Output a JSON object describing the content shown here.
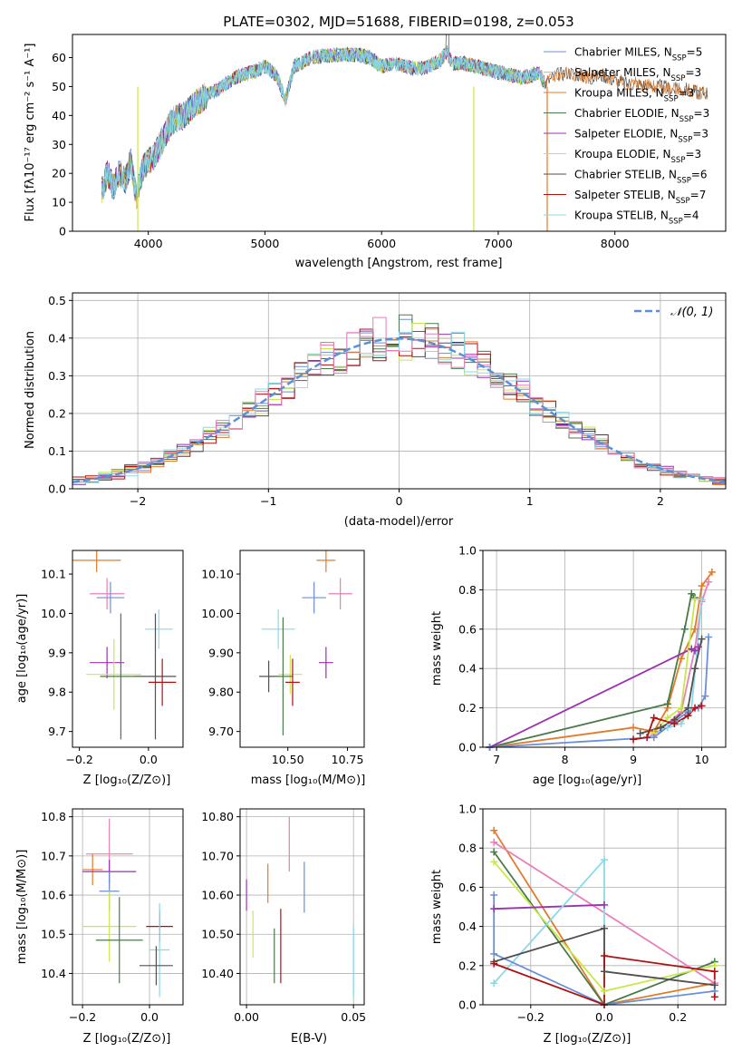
{
  "title": "PLATE=0302, MJD=51688, FIBERID=0198, z=0.053",
  "colors": {
    "Chabrier MILES": "#6a8fd8",
    "Salpeter MILES": "#7fd8e0",
    "Kroupa MILES": "#e07b2a",
    "Chabrier ELODIE": "#4a7a4a",
    "Salpeter ELODIE": "#9b30b0",
    "Kroupa ELODIE": "#c8e84a",
    "Chabrier STELIB": "#505050",
    "Salpeter STELIB": "#b01010",
    "Kroupa STELIB": "#8ad8e8",
    "pink": "#e87fb8"
  },
  "labels": {
    "spec_x": "wavelength [Angstrom, rest frame]",
    "spec_y": "Flux [fλ10⁻¹⁷ erg cm⁻² s⁻¹ A⁻¹]",
    "hist_x": "(data-model)/error",
    "hist_y": "Normed distribution",
    "hist_legend": "𝒩(0, 1)",
    "Z": "Z [log₁₀(Z/Z⊙)]",
    "mass": "mass [log₁₀(M/M⊙)]",
    "age": "age  [log₁₀(age/yr)]",
    "ebv": "E(B-V)",
    "mw": "mass weight"
  },
  "legend": [
    {
      "name": "Chabrier MILES",
      "n": "5"
    },
    {
      "name": "Salpeter MILES",
      "n": "3"
    },
    {
      "name": "Kroupa MILES",
      "n": "3"
    },
    {
      "name": "Chabrier ELODIE",
      "n": "3"
    },
    {
      "name": "Salpeter ELODIE",
      "n": "3"
    },
    {
      "name": "Kroupa ELODIE",
      "n": "3"
    },
    {
      "name": "Chabrier STELIB",
      "n": "6"
    },
    {
      "name": "Salpeter STELIB",
      "n": "7"
    },
    {
      "name": "Kroupa STELIB",
      "n": "4"
    }
  ],
  "chart_data": [
    {
      "type": "line",
      "title": "PLATE=0302, MJD=51688, FIBERID=0198, z=0.053",
      "xlim": [
        3350,
        8950
      ],
      "ylim": [
        0,
        68
      ],
      "xticks": [
        4000,
        5000,
        6000,
        7000,
        8000
      ],
      "yticks": [
        0,
        10,
        20,
        30,
        40,
        50,
        60
      ],
      "spectrum": {
        "x": [
          3600,
          3650,
          3700,
          3750,
          3800,
          3850,
          3900,
          3950,
          4000,
          4050,
          4100,
          4150,
          4200,
          4300,
          4400,
          4500,
          4600,
          4700,
          4800,
          4900,
          5000,
          5100,
          5175,
          5250,
          5400,
          5600,
          5800,
          5900,
          6000,
          6100,
          6200,
          6300,
          6400,
          6500,
          6560,
          6600,
          6700,
          6800,
          6900,
          7000,
          7100,
          7200,
          7300,
          7350,
          7400,
          7500,
          7600,
          7700,
          7800,
          7900,
          8000,
          8100,
          8200,
          8300,
          8400,
          8500,
          8600,
          8700,
          8800
        ],
        "y": [
          14,
          20,
          15,
          21,
          17,
          24,
          12,
          22,
          24,
          26,
          30,
          34,
          38,
          40,
          44,
          47,
          49,
          52,
          54,
          55,
          57,
          54,
          45,
          57,
          60,
          61,
          61,
          60,
          57,
          58,
          57,
          56,
          57,
          59,
          62,
          58,
          58,
          57,
          56,
          55,
          54,
          53,
          54,
          55,
          51,
          54,
          55,
          54,
          53,
          54,
          52,
          51,
          51,
          50,
          50,
          49,
          49,
          48,
          48
        ]
      },
      "annotations": [
        "Hα emission spike near 6565",
        "model edge drops near 3910, 6790, 7420"
      ]
    },
    {
      "type": "step",
      "xlim": [
        -2.5,
        2.5
      ],
      "ylim": [
        0,
        0.52
      ],
      "xticks": [
        -2,
        -1,
        0,
        1,
        2
      ],
      "yticks": [
        0.0,
        0.1,
        0.2,
        0.3,
        0.4,
        0.5
      ],
      "gaussian": {
        "name": "𝒩(0, 1)",
        "mu": 0,
        "sigma": 1
      },
      "bin_width": 0.1,
      "x_start": -2.5
    },
    {
      "type": "errorbar",
      "xlim": [
        -0.22,
        0.1
      ],
      "ylim": [
        9.66,
        10.16
      ],
      "xticks": [
        -0.2,
        0.0
      ],
      "yticks": [
        9.7,
        9.8,
        9.9,
        10.0,
        10.1
      ],
      "points": [
        {
          "s": "Kroupa MILES",
          "x": -0.15,
          "xe": 0.07,
          "y": 10.135,
          "ye": 0.03
        },
        {
          "s": "pink",
          "x": -0.12,
          "xe": 0.05,
          "y": 10.05,
          "ye": 0.04
        },
        {
          "s": "Chabrier MILES",
          "x": -0.11,
          "xe": 0.04,
          "y": 10.04,
          "ye": 0.04
        },
        {
          "s": "Kroupa STELIB",
          "x": 0.03,
          "xe": 0.04,
          "y": 9.96,
          "ye": 0.05
        },
        {
          "s": "Chabrier STELIB",
          "x": 0.02,
          "xe": 0.06,
          "y": 9.84,
          "ye": 0.16
        },
        {
          "s": "Salpeter ELODIE",
          "x": -0.12,
          "xe": 0.05,
          "y": 9.875,
          "ye": 0.04
        },
        {
          "s": "Kroupa ELODIE",
          "x": -0.1,
          "xe": 0.08,
          "y": 9.845,
          "ye": 0.09
        },
        {
          "s": "Chabrier ELODIE",
          "x": -0.08,
          "xe": 0.06,
          "y": 9.84,
          "ye": 0.16
        },
        {
          "s": "Salpeter STELIB",
          "x": 0.04,
          "xe": 0.04,
          "y": 9.825,
          "ye": 0.06
        }
      ]
    },
    {
      "type": "errorbar",
      "xlim": [
        10.3,
        10.82
      ],
      "ylim": [
        9.66,
        10.16
      ],
      "xticks": [
        10.5,
        10.75
      ],
      "yticks": [
        9.7,
        9.8,
        9.9,
        10.0,
        10.1
      ],
      "points": [
        {
          "s": "Kroupa MILES",
          "x": 10.66,
          "xe": 0.04,
          "y": 10.135,
          "ye": 0.03
        },
        {
          "s": "pink",
          "x": 10.72,
          "xe": 0.05,
          "y": 10.05,
          "ye": 0.04
        },
        {
          "s": "Chabrier MILES",
          "x": 10.61,
          "xe": 0.05,
          "y": 10.04,
          "ye": 0.04
        },
        {
          "s": "Kroupa STELIB",
          "x": 10.46,
          "xe": 0.07,
          "y": 9.96,
          "ye": 0.05
        },
        {
          "s": "Chabrier STELIB",
          "x": 10.42,
          "xe": 0.04,
          "y": 9.84,
          "ye": 0.04
        },
        {
          "s": "Salpeter ELODIE",
          "x": 10.66,
          "xe": 0.03,
          "y": 9.875,
          "ye": 0.04
        },
        {
          "s": "Kroupa ELODIE",
          "x": 10.51,
          "xe": 0.05,
          "y": 9.845,
          "ye": 0.05
        },
        {
          "s": "Chabrier ELODIE",
          "x": 10.48,
          "xe": 0.04,
          "y": 9.84,
          "ye": 0.15
        },
        {
          "s": "Salpeter STELIB",
          "x": 10.52,
          "xe": 0.03,
          "y": 9.825,
          "ye": 0.06
        }
      ]
    },
    {
      "type": "line",
      "xlim": [
        6.8,
        10.35
      ],
      "ylim": [
        0,
        1
      ],
      "xticks": [
        7,
        8,
        9,
        10
      ],
      "yticks": [
        0.0,
        0.2,
        0.4,
        0.6,
        0.8,
        1.0
      ],
      "series": [
        {
          "s": "Kroupa MILES",
          "x": [
            6.9,
            9.0,
            9.3,
            9.5,
            9.7,
            9.9,
            10.0,
            10.15
          ],
          "y": [
            0.0,
            0.1,
            0.08,
            0.2,
            0.45,
            0.6,
            0.82,
            0.89
          ]
        },
        {
          "s": "pink",
          "x": [
            9.3,
            9.7,
            9.9,
            10.0,
            10.1
          ],
          "y": [
            0.06,
            0.18,
            0.5,
            0.74,
            0.84
          ]
        },
        {
          "s": "Chabrier ELODIE",
          "x": [
            6.9,
            9.5,
            9.75,
            9.85,
            9.9
          ],
          "y": [
            0.0,
            0.22,
            0.6,
            0.78,
            0.76
          ]
        },
        {
          "s": "Salpeter ELODIE",
          "x": [
            6.9,
            9.85,
            9.9,
            9.95
          ],
          "y": [
            0.0,
            0.5,
            0.49,
            0.51
          ]
        },
        {
          "s": "Kroupa ELODIE",
          "x": [
            9.3,
            9.5,
            9.7,
            9.9
          ],
          "y": [
            0.07,
            0.15,
            0.2,
            0.75
          ]
        },
        {
          "s": "Kroupa STELIB",
          "x": [
            9.2,
            9.5,
            9.7,
            9.85,
            10.0
          ],
          "y": [
            0.05,
            0.1,
            0.12,
            0.2,
            0.75
          ]
        },
        {
          "s": "Chabrier MILES",
          "x": [
            6.9,
            9.3,
            9.6,
            9.8,
            9.95,
            10.05,
            10.1
          ],
          "y": [
            0.0,
            0.05,
            0.13,
            0.18,
            0.2,
            0.26,
            0.56
          ]
        },
        {
          "s": "Chabrier STELIB",
          "x": [
            9.1,
            9.4,
            9.6,
            9.8,
            9.9,
            10.0
          ],
          "y": [
            0.07,
            0.1,
            0.14,
            0.2,
            0.4,
            0.55
          ]
        },
        {
          "s": "Salpeter STELIB",
          "x": [
            9.0,
            9.2,
            9.3,
            9.6,
            9.8,
            9.9,
            10.0
          ],
          "y": [
            0.04,
            0.05,
            0.15,
            0.12,
            0.16,
            0.2,
            0.21
          ]
        }
      ]
    },
    {
      "type": "errorbar",
      "xlim": [
        -0.23,
        0.1
      ],
      "ylim": [
        10.32,
        10.82
      ],
      "xticks": [
        -0.2,
        0.0
      ],
      "yticks": [
        10.4,
        10.5,
        10.6,
        10.7,
        10.8
      ],
      "points": [
        {
          "s": "pink",
          "x": -0.12,
          "xe": 0.07,
          "y": 10.705,
          "ye": 0.09
        },
        {
          "s": "Kroupa MILES",
          "x": -0.17,
          "xe": 0.03,
          "y": 10.665,
          "ye": 0.04
        },
        {
          "s": "Salpeter ELODIE",
          "x": -0.12,
          "xe": 0.08,
          "y": 10.66,
          "ye": 0.03
        },
        {
          "s": "Chabrier MILES",
          "x": -0.12,
          "xe": 0.03,
          "y": 10.61,
          "ye": 0.05
        },
        {
          "s": "Kroupa ELODIE",
          "x": -0.12,
          "xe": 0.08,
          "y": 10.52,
          "ye": 0.09
        },
        {
          "s": "Salpeter STELIB",
          "x": 0.03,
          "xe": 0.04,
          "y": 10.52,
          "ye": 0.04
        },
        {
          "s": "Chabrier ELODIE",
          "x": -0.09,
          "xe": 0.07,
          "y": 10.485,
          "ye": 0.11
        },
        {
          "s": "Kroupa STELIB",
          "x": 0.03,
          "xe": 0.03,
          "y": 10.46,
          "ye": 0.12
        },
        {
          "s": "Chabrier STELIB",
          "x": 0.02,
          "xe": 0.05,
          "y": 10.42,
          "ye": 0.05
        }
      ]
    },
    {
      "type": "errorbar",
      "xlim": [
        -0.003,
        0.055
      ],
      "ylim": [
        10.32,
        10.82
      ],
      "xticks": [
        0.0,
        0.05
      ],
      "yticks": [
        10.4,
        10.5,
        10.6,
        10.7,
        10.8
      ],
      "points": [
        {
          "s": "pink",
          "x": 0.02,
          "xe": 0,
          "y": 10.73,
          "ye": 0.07
        },
        {
          "s": "Kroupa MILES",
          "x": 0.01,
          "xe": 0,
          "y": 10.63,
          "ye": 0.05
        },
        {
          "s": "Salpeter ELODIE",
          "x": 0.0,
          "xe": 0,
          "y": 10.6,
          "ye": 0.04
        },
        {
          "s": "Chabrier MILES",
          "x": 0.027,
          "xe": 0,
          "y": 10.62,
          "ye": 0.065
        },
        {
          "s": "Kroupa ELODIE",
          "x": 0.003,
          "xe": 0,
          "y": 10.5,
          "ye": 0.06
        },
        {
          "s": "Salpeter STELIB",
          "x": 0.016,
          "xe": 0,
          "y": 10.47,
          "ye": 0.095
        },
        {
          "s": "Chabrier ELODIE",
          "x": 0.013,
          "xe": 0,
          "y": 10.445,
          "ye": 0.07
        },
        {
          "s": "Kroupa STELIB",
          "x": 0.05,
          "xe": 0,
          "y": 10.43,
          "ye": 0.09
        }
      ]
    },
    {
      "type": "line",
      "xlim": [
        -0.33,
        0.33
      ],
      "ylim": [
        0,
        1
      ],
      "xticks": [
        -0.2,
        0.0,
        0.2
      ],
      "yticks": [
        0.0,
        0.2,
        0.4,
        0.6,
        0.8,
        1.0
      ],
      "series": [
        {
          "s": "Kroupa MILES",
          "x": [
            -0.3,
            0.0,
            0.3
          ],
          "y": [
            0.89,
            0.0,
            0.11
          ]
        },
        {
          "s": "pink",
          "x": [
            -0.3,
            0.3
          ],
          "y": [
            0.83,
            0.11
          ]
        },
        {
          "s": "Chabrier ELODIE",
          "x": [
            -0.3,
            0.0,
            0.3
          ],
          "y": [
            0.78,
            0.0,
            0.22
          ]
        },
        {
          "s": "Kroupa ELODIE",
          "x": [
            -0.3,
            0.0,
            0.3
          ],
          "y": [
            0.73,
            0.07,
            0.2
          ]
        },
        {
          "s": "Salpeter ELODIE",
          "x": [
            -0.3,
            0.0
          ],
          "y": [
            0.49,
            0.51
          ]
        },
        {
          "s": "Kroupa STELIB",
          "x": [
            -0.3,
            0.0,
            0.0
          ],
          "y": [
            0.11,
            0.74,
            0.0
          ]
        },
        {
          "s": "Chabrier MILES",
          "x": [
            -0.3,
            -0.3,
            0.0,
            0.3
          ],
          "y": [
            0.56,
            0.26,
            0.0,
            0.07
          ]
        },
        {
          "s": "Chabrier STELIB",
          "x": [
            -0.3,
            0.0,
            0.0,
            0.3
          ],
          "y": [
            0.22,
            0.39,
            0.17,
            0.1
          ]
        },
        {
          "s": "Salpeter STELIB",
          "x": [
            -0.3,
            0.0,
            0.0,
            0.3,
            0.3
          ],
          "y": [
            0.21,
            0.0,
            0.25,
            0.17,
            0.04
          ]
        }
      ]
    }
  ]
}
